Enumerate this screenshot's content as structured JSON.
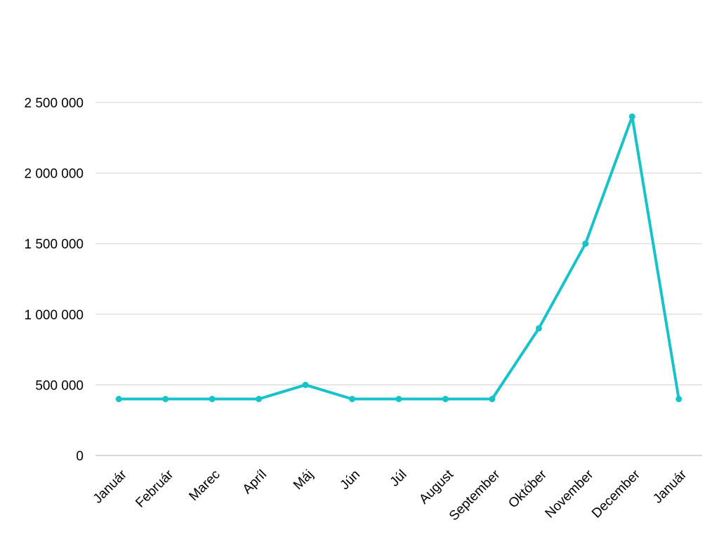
{
  "chart_data": {
    "type": "line",
    "categories": [
      "Január",
      "Február",
      "Marec",
      "Apríl",
      "Máj",
      "Jún",
      "Júl",
      "August",
      "September",
      "Október",
      "November",
      "December",
      "Január"
    ],
    "series": [
      {
        "values": [
          400000,
          400000,
          400000,
          400000,
          500000,
          400000,
          400000,
          400000,
          400000,
          900000,
          1500000,
          2400000,
          400000
        ]
      }
    ],
    "y_ticks": [
      "0",
      "500 000",
      "1 000 000",
      "1 500 000",
      "2 000 000",
      "2 500 000"
    ],
    "y_tick_values": [
      0,
      500000,
      1000000,
      1500000,
      2000000,
      2500000
    ],
    "ylim": [
      0,
      2500000
    ],
    "grid": true,
    "legend": "none",
    "colors": {
      "line": "#17c3c9",
      "grid": "#d3d3d3",
      "axis": "#b3b3b3"
    }
  }
}
